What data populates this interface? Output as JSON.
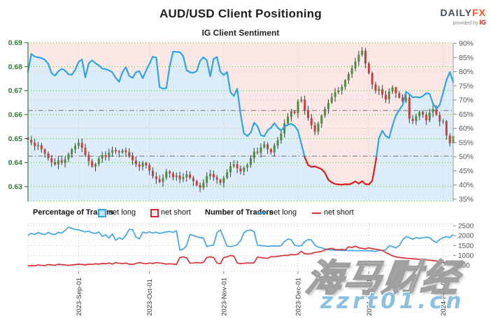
{
  "header": {
    "title": "AUD/USD Client Positioning",
    "subtitle": "IG Client Sentiment",
    "logo": {
      "daily": "DAILY",
      "fx": "FX",
      "provided_by": "provided by",
      "ig": "IG"
    }
  },
  "legend": {
    "percentage_label": "Percentage of Traders",
    "pct_net_long": "net long",
    "pct_net_short": "net short",
    "number_label": "Number of Traders",
    "num_net_long": "net long",
    "num_net_short": "net short"
  },
  "watermark": {
    "cjk": "海马财经",
    "latin": "zzrt01.cn"
  },
  "colors": {
    "sentiment_long": "#2fa3e8",
    "sentiment_short": "#e0191f",
    "bg_above": "#fbe7e5",
    "bg_below": "#dcecf8",
    "candle_up": "#4e8c40",
    "candle_down": "#c8403e",
    "wick": "#3a3a3a",
    "price_axis": "#357a38",
    "pct_axis": "#555555",
    "grid_green": "#63b143",
    "grid_gray": "#c6c6c6",
    "ref_line": "#8a8a8a",
    "count_long": "#41a4e6",
    "count_short": "#d93036"
  },
  "chart_data": [
    {
      "type": "candlestick+line",
      "title": "AUD/USD daily candles with IG client net-long percentage",
      "price_axis_ticks": [
        "0.69",
        "0.68",
        "0.67",
        "0.66",
        "0.65",
        "0.64",
        "0.63"
      ],
      "price_axis_range": [
        0.69,
        0.63
      ],
      "pct_axis_ticks": [
        "90%",
        "85%",
        "80%",
        "75%",
        "70%",
        "65%",
        "60%",
        "55%",
        "50%",
        "45%",
        "40%",
        "35%"
      ],
      "pct_axis_range": [
        90,
        35
      ],
      "x_ticks": [
        {
          "label": "2023-Sep-01",
          "i": 15
        },
        {
          "label": "2023-Oct-01",
          "i": 36
        },
        {
          "label": "2023-Nov-01",
          "i": 58
        },
        {
          "label": "2023-Dec-01",
          "i": 80
        },
        {
          "label": "2024-Jan-01",
          "i": 101
        },
        {
          "label": "2024-Feb-01",
          "i": 123
        }
      ],
      "n_days": 127,
      "first_open": 0.6505,
      "closes": [
        0.6495,
        0.6483,
        0.6468,
        0.6472,
        0.6455,
        0.6438,
        0.6418,
        0.6402,
        0.6392,
        0.641,
        0.6399,
        0.6414,
        0.6435,
        0.6455,
        0.647,
        0.6483,
        0.6462,
        0.6432,
        0.6406,
        0.6383,
        0.6394,
        0.6417,
        0.6431,
        0.6423,
        0.6441,
        0.6452,
        0.6447,
        0.6442,
        0.6451,
        0.6444,
        0.6426,
        0.6409,
        0.6393,
        0.6383,
        0.6399,
        0.6389,
        0.6366,
        0.6343,
        0.6331,
        0.6319,
        0.6336,
        0.6363,
        0.6355,
        0.6339,
        0.6346,
        0.6331,
        0.6339,
        0.6351,
        0.6337,
        0.6323,
        0.6306,
        0.6296,
        0.6316,
        0.6343,
        0.6353,
        0.6339,
        0.6329,
        0.6316,
        0.6336,
        0.6359,
        0.6386,
        0.6393,
        0.6376,
        0.6363,
        0.6379,
        0.6391,
        0.6419,
        0.6446,
        0.6441,
        0.6463,
        0.6476,
        0.6456,
        0.6443,
        0.6471,
        0.6493,
        0.6521,
        0.6563,
        0.6591,
        0.6613,
        0.6606,
        0.6656,
        0.6663,
        0.6619,
        0.6586,
        0.6556,
        0.6529,
        0.6563,
        0.6596,
        0.6623,
        0.6649,
        0.6673,
        0.6693,
        0.6701,
        0.6716,
        0.6743,
        0.6769,
        0.6793,
        0.6821,
        0.6849,
        0.6866,
        0.6813,
        0.6773,
        0.6726,
        0.6699,
        0.6706,
        0.6683,
        0.6663,
        0.6696,
        0.6713,
        0.6689,
        0.6671,
        0.6656,
        0.6671,
        0.6583,
        0.6573,
        0.6593,
        0.6611,
        0.6599,
        0.6576,
        0.6609,
        0.6623,
        0.6599,
        0.6571,
        0.6573,
        0.6513,
        0.6481,
        0.6511
      ],
      "net_long_pct": [
        80,
        86.3,
        85.3,
        85.1,
        84.8,
        84.2,
        82.8,
        79.5,
        78.6,
        80.1,
        81,
        80.4,
        79.1,
        78.9,
        80.7,
        83.5,
        84.3,
        78,
        83,
        84,
        83,
        82.2,
        81.1,
        80.9,
        80.5,
        79.8,
        77.8,
        76.4,
        79.8,
        81.6,
        78.5,
        77.8,
        79.8,
        80.2,
        77.7,
        80.4,
        82.8,
        85.3,
        85,
        74.5,
        74,
        74.2,
        82,
        87.1,
        87,
        86.9,
        85.5,
        80.5,
        79.8,
        79.6,
        80.2,
        83.8,
        85.1,
        84,
        78.3,
        84.5,
        85.2,
        80,
        78.8,
        79.9,
        72.8,
        71.4,
        74,
        65,
        58.2,
        57.3,
        58.5,
        62,
        60.8,
        57.6,
        57.2,
        59.3,
        60.2,
        61.8,
        60.3,
        59.2,
        60.6,
        61.3,
        61.6,
        60.9,
        59.2,
        54.5,
        49.8,
        47,
        46.4,
        46.6,
        46.1,
        45.6,
        44.3,
        41.8,
        40.9,
        40.4,
        40.2,
        40.1,
        40.3,
        40.2,
        40.6,
        41.3,
        40.5,
        41.4,
        40.3,
        40.2,
        41.5,
        48,
        56.5,
        59.2,
        57.3,
        56.6,
        61,
        64.5,
        66.5,
        68.2,
        72.9,
        72.1,
        70.9,
        71.1,
        70.8,
        71.4,
        72.4,
        72.2,
        68.8,
        66.9,
        68.3,
        72.5,
        77,
        79.9,
        76.3
      ],
      "reference_lines_pct": [
        66.3,
        50.2
      ]
    },
    {
      "type": "line",
      "title": "Number of Traders",
      "y_ticks": [
        "2500",
        "2000",
        "1500",
        "1000",
        "500"
      ],
      "y_tick_values": [
        2500,
        2000,
        1500,
        1000,
        500
      ],
      "series": [
        {
          "name": "net long",
          "values": [
            2020,
            2120,
            2060,
            2160,
            2090,
            2060,
            2170,
            2080,
            2060,
            2170,
            2130,
            2260,
            2430,
            2370,
            2310,
            2290,
            2240,
            2190,
            2230,
            2140,
            2110,
            2190,
            1960,
            2040,
            1880,
            2090,
            1760,
            1900,
            1820,
            2010,
            2320,
            2300,
            1930,
            1840,
            2180,
            2130,
            2190,
            2130,
            2180,
            2110,
            2150,
            2190,
            2210,
            2160,
            2250,
            1270,
            1320,
            1500,
            2060,
            2010,
            1950,
            1900,
            1880,
            1450,
            1500,
            1520,
            2150,
            2290,
            1880,
            1470,
            1450,
            1480,
            1550,
            1750,
            2150,
            2260,
            2290,
            2200,
            1520,
            1500,
            1480,
            1460,
            1470,
            1480,
            1470,
            1490,
            1700,
            1830,
            1790,
            1520,
            1480,
            1490,
            1700,
            1800,
            1780,
            1520,
            1420,
            1390,
            1330,
            1290,
            1280,
            1270,
            1260,
            1250,
            1250,
            1245,
            1250,
            1240,
            1245,
            1240,
            1235,
            1240,
            1230,
            1200,
            1260,
            1250,
            1280,
            1500,
            1450,
            1380,
            1500,
            1780,
            1950,
            1900,
            1820,
            1900,
            1870,
            1890,
            1930,
            1900,
            1750,
            1650,
            1800,
            1900,
            1950,
            1900,
            2060
          ]
        },
        {
          "name": "net short",
          "values": [
            470,
            490,
            475,
            520,
            500,
            485,
            540,
            520,
            505,
            560,
            540,
            520,
            505,
            520,
            540,
            560,
            545,
            525,
            560,
            545,
            580,
            565,
            600,
            580,
            620,
            565,
            640,
            605,
            585,
            620,
            565,
            545,
            600,
            640,
            605,
            585,
            620,
            600,
            640,
            620,
            600,
            565,
            585,
            565,
            545,
            900,
            930,
            880,
            605,
            620,
            640,
            620,
            650,
            900,
            930,
            900,
            620,
            585,
            900,
            930,
            1000,
            970,
            620,
            590,
            605,
            625,
            615,
            630,
            920,
            890,
            870,
            855,
            940,
            930,
            960,
            980,
            1010,
            1000,
            1050,
            1030,
            1070,
            1210,
            1090,
            1070,
            1100,
            1150,
            1180,
            1210,
            1280,
            1330,
            1360,
            1300,
            1290,
            1310,
            1280,
            1440,
            1400,
            1470,
            1390,
            1360,
            1330,
            1390,
            1340,
            1310,
            1290,
            1250,
            1150,
            1070,
            980,
            930,
            900,
            880,
            860,
            850,
            840,
            820,
            800,
            790,
            780,
            760,
            740,
            720,
            700,
            660,
            600,
            540,
            680
          ]
        }
      ]
    }
  ]
}
